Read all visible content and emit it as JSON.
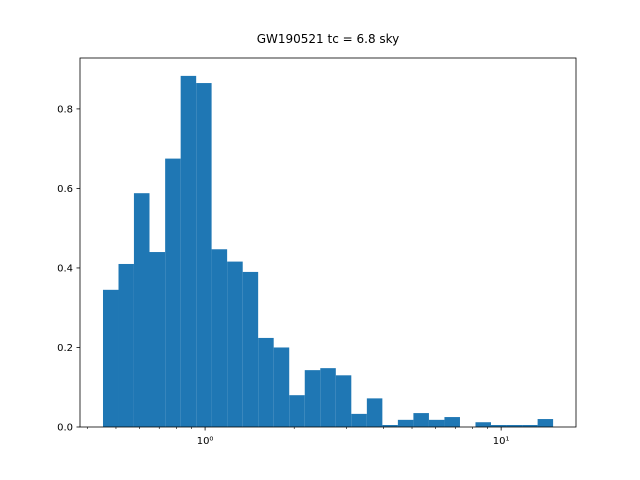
{
  "chart_data": {
    "type": "histogram",
    "title": "GW190521 tc = 6.8 sky",
    "bins": [
      0.452,
      0.51,
      0.575,
      0.649,
      0.733,
      0.827,
      0.933,
      1.052,
      1.187,
      1.34,
      1.511,
      1.705,
      1.924,
      2.171,
      2.45,
      2.764,
      3.118,
      3.519,
      3.97,
      4.479,
      5.054,
      5.703,
      6.434,
      7.26,
      8.191,
      9.242,
      10.43,
      11.77,
      13.28,
      14.98
    ],
    "values": [
      0.345,
      0.41,
      0.588,
      0.44,
      0.675,
      0.883,
      0.865,
      0.447,
      0.416,
      0.39,
      0.224,
      0.2,
      0.08,
      0.143,
      0.148,
      0.13,
      0.033,
      0.072,
      0.005,
      0.018,
      0.035,
      0.018,
      0.025,
      0,
      0.012,
      0.005,
      0.005,
      0.005,
      0.02
    ],
    "color": "#1f77b4",
    "xscale": "log",
    "xlim": [
      0.378,
      17.9
    ],
    "xticks": [
      {
        "value": 1,
        "label": "10⁰"
      },
      {
        "value": 10,
        "label": "10¹"
      }
    ],
    "xminorticks": [
      0.4,
      0.5,
      0.6,
      0.7,
      0.8,
      0.9,
      2,
      3,
      4,
      5,
      6,
      7,
      8,
      9
    ],
    "ylim": [
      0,
      0.928
    ],
    "yticks": [
      {
        "value": 0,
        "label": "0.0"
      },
      0.2,
      0.4,
      0.6,
      0.8
    ],
    "grid": false
  }
}
